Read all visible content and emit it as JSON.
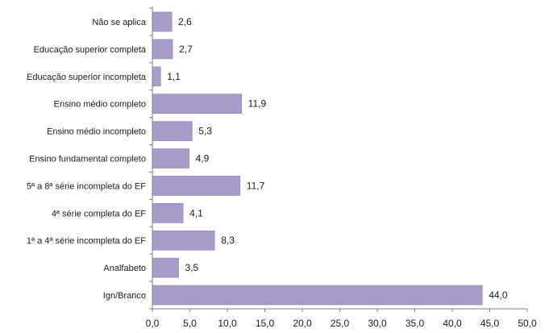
{
  "chart_data": {
    "type": "bar",
    "orientation": "horizontal",
    "title": "",
    "xlabel": "",
    "ylabel": "",
    "categories": [
      "Não se aplica",
      "Educação superior completa",
      "Educação superior incompleta",
      "Ensino médio completo",
      "Ensino médio incompleto",
      "Ensino fundamental completo",
      "5ª a 8ª série incompleta do EF",
      "4ª série completa do EF",
      "1ª a 4ª série incompleta do EF",
      "Analfabeto",
      "Ign/Branco"
    ],
    "values": [
      2.6,
      2.7,
      1.1,
      11.9,
      5.3,
      4.9,
      11.7,
      4.1,
      8.3,
      3.5,
      44.0
    ],
    "value_labels": [
      "2,6",
      "2,7",
      "1,1",
      "11,9",
      "5,3",
      "4,9",
      "11,7",
      "4,1",
      "8,3",
      "3,5",
      "44,0"
    ],
    "xlim": [
      0,
      50
    ],
    "x_ticks": [
      0,
      5,
      10,
      15,
      20,
      25,
      30,
      35,
      40,
      45,
      50
    ],
    "x_tick_labels": [
      "0,0",
      "5,0",
      "10,0",
      "15,0",
      "20,0",
      "25,0",
      "30,0",
      "35,0",
      "40,0",
      "45,0",
      "50,0"
    ],
    "grid": false,
    "legend": "none",
    "colors": {
      "bar_fill": "#a99bcb",
      "bar_stroke": "#8a7cb3",
      "axis": "#7f7f7f",
      "text": "#1a1a1a"
    }
  }
}
